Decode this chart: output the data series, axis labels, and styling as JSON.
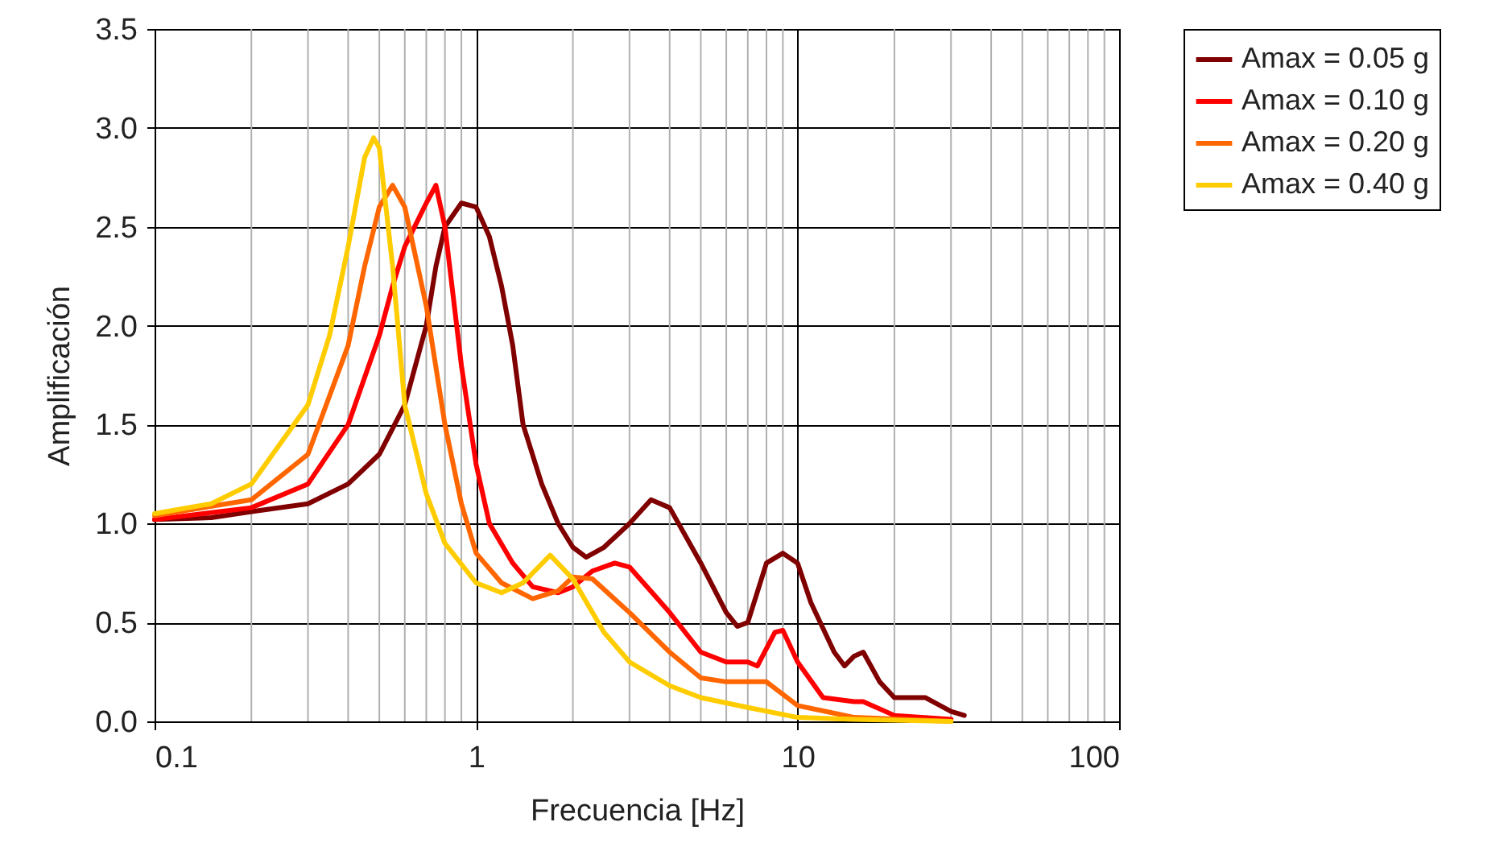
{
  "chart_data": {
    "type": "line",
    "xlabel": "Frecuencia [Hz]",
    "ylabel": "Amplificación",
    "log": "x",
    "grid": true,
    "legend": "right",
    "line_style": "solid",
    "marker": "none",
    "xlim": [
      0.1,
      100
    ],
    "xticks": [
      0.1,
      1,
      10,
      100
    ],
    "ylim": [
      0,
      3.5
    ],
    "yticks": [
      {
        "value": 0,
        "label": "0.0"
      },
      {
        "value": 0.5,
        "label": "0.5"
      },
      {
        "value": 1,
        "label": "1.0"
      },
      {
        "value": 1.5,
        "label": "1.5"
      },
      {
        "value": 2,
        "label": "2.0"
      },
      {
        "value": 2.5,
        "label": "2.5"
      },
      {
        "value": 3,
        "label": "3.0"
      },
      {
        "value": 3.5,
        "label": "3.5"
      }
    ],
    "series": [
      {
        "name": "Amax = 0.05 g",
        "color": "#800000",
        "x": [
          0.1,
          0.15,
          0.2,
          0.3,
          0.4,
          0.5,
          0.6,
          0.7,
          0.75,
          0.8,
          0.9,
          1.0,
          1.1,
          1.2,
          1.3,
          1.4,
          1.6,
          1.8,
          2.0,
          2.2,
          2.5,
          3.0,
          3.5,
          4.0,
          5.0,
          6.0,
          6.5,
          7.0,
          8.0,
          9.0,
          10,
          11,
          13,
          14,
          15,
          16,
          18,
          20,
          25,
          30,
          33
        ],
        "values": [
          1.02,
          1.03,
          1.06,
          1.1,
          1.2,
          1.35,
          1.6,
          2.0,
          2.3,
          2.5,
          2.62,
          2.6,
          2.45,
          2.2,
          1.9,
          1.5,
          1.2,
          1.0,
          0.88,
          0.83,
          0.88,
          1.0,
          1.12,
          1.08,
          0.8,
          0.55,
          0.48,
          0.5,
          0.8,
          0.85,
          0.8,
          0.6,
          0.35,
          0.28,
          0.33,
          0.35,
          0.2,
          0.12,
          0.12,
          0.05,
          0.03
        ]
      },
      {
        "name": "Amax = 0.10 g",
        "color": "#ff0000",
        "x": [
          0.1,
          0.2,
          0.3,
          0.4,
          0.5,
          0.55,
          0.6,
          0.7,
          0.75,
          0.8,
          0.9,
          1.0,
          1.1,
          1.3,
          1.5,
          1.8,
          2.0,
          2.3,
          2.7,
          3.0,
          4.0,
          5.0,
          6.0,
          7.0,
          7.5,
          8.5,
          9.0,
          10,
          12,
          15,
          16,
          20,
          30
        ],
        "values": [
          1.02,
          1.08,
          1.2,
          1.5,
          1.95,
          2.2,
          2.4,
          2.62,
          2.71,
          2.5,
          1.8,
          1.3,
          1.0,
          0.8,
          0.68,
          0.65,
          0.68,
          0.76,
          0.8,
          0.78,
          0.55,
          0.35,
          0.3,
          0.3,
          0.28,
          0.45,
          0.46,
          0.3,
          0.12,
          0.1,
          0.1,
          0.03,
          0.01
        ]
      },
      {
        "name": "Amax = 0.20 g",
        "color": "#ff6600",
        "x": [
          0.1,
          0.2,
          0.3,
          0.4,
          0.45,
          0.5,
          0.55,
          0.6,
          0.7,
          0.8,
          0.9,
          1.0,
          1.2,
          1.5,
          1.8,
          2.0,
          2.3,
          3.0,
          4.0,
          5.0,
          6.0,
          8.0,
          10,
          15,
          30
        ],
        "values": [
          1.04,
          1.12,
          1.35,
          1.9,
          2.3,
          2.6,
          2.71,
          2.6,
          2.1,
          1.5,
          1.1,
          0.85,
          0.7,
          0.62,
          0.66,
          0.73,
          0.72,
          0.55,
          0.35,
          0.22,
          0.2,
          0.2,
          0.08,
          0.02,
          0.0
        ]
      },
      {
        "name": "Amax = 0.40 g",
        "color": "#ffcc00",
        "x": [
          0.1,
          0.15,
          0.2,
          0.3,
          0.35,
          0.4,
          0.45,
          0.48,
          0.5,
          0.55,
          0.6,
          0.7,
          0.8,
          1.0,
          1.2,
          1.4,
          1.7,
          2.0,
          2.5,
          3.0,
          4.0,
          5.0,
          7.0,
          10,
          15,
          30
        ],
        "values": [
          1.05,
          1.1,
          1.2,
          1.6,
          1.95,
          2.4,
          2.85,
          2.95,
          2.9,
          2.3,
          1.6,
          1.15,
          0.9,
          0.7,
          0.65,
          0.7,
          0.84,
          0.72,
          0.45,
          0.3,
          0.18,
          0.12,
          0.07,
          0.02,
          0.01,
          0.0
        ]
      }
    ]
  }
}
